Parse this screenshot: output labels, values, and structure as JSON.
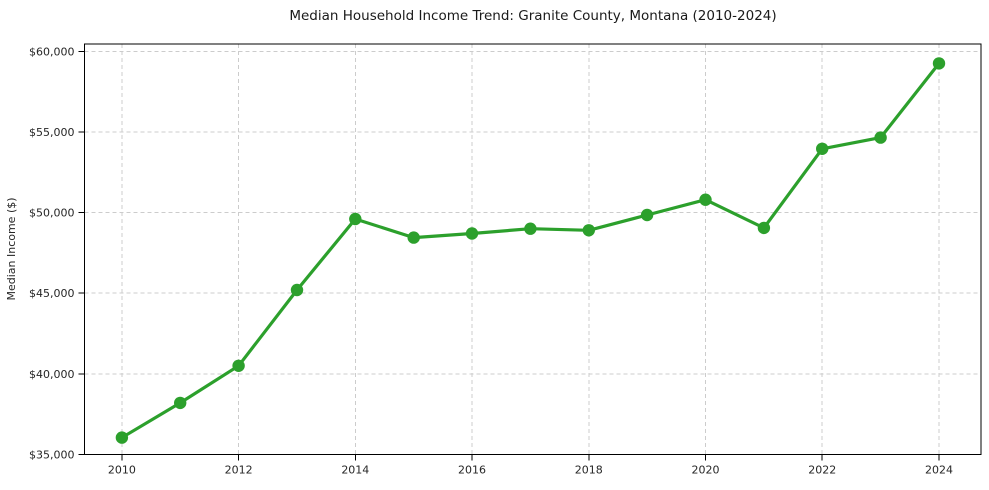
{
  "window": {
    "background": "#ffffff"
  },
  "chart_data": {
    "type": "line",
    "title": "Median Household Income Trend: Granite County, Montana (2010-2024)",
    "xlabel": "",
    "ylabel": "Median Income ($)",
    "x": [
      2010,
      2011,
      2012,
      2013,
      2014,
      2015,
      2016,
      2017,
      2018,
      2019,
      2020,
      2021,
      2022,
      2023,
      2024
    ],
    "series": [
      {
        "name": "Median Household Income",
        "color": "#2ca02c",
        "values": [
          36050,
          38200,
          40500,
          45200,
          49600,
          48450,
          48700,
          49000,
          48900,
          49850,
          50800,
          49050,
          53950,
          54650,
          59250
        ],
        "marker": "circle",
        "marker_radius": 6.2,
        "line_width": 3.2
      }
    ],
    "xticks": [
      2010,
      2012,
      2014,
      2016,
      2018,
      2020,
      2022,
      2024
    ],
    "xtick_labels": [
      "2010",
      "2012",
      "2014",
      "2016",
      "2018",
      "2020",
      "2022",
      "2024"
    ],
    "yticks": [
      35000,
      40000,
      45000,
      50000,
      55000,
      60000
    ],
    "ytick_labels": [
      "$35,000",
      "$40,000",
      "$45,000",
      "$50,000",
      "$55,000",
      "$60,000"
    ],
    "xlim": [
      2009.36,
      2024.72
    ],
    "ylim": [
      35000,
      60450
    ],
    "grid": true,
    "grid_style": "dashed",
    "legend": "none",
    "colors": {
      "grid": "#cccccc",
      "spine": "#000000",
      "tick_label": "#262626",
      "title": "#1a1a1a",
      "background": "#ffffff"
    }
  }
}
